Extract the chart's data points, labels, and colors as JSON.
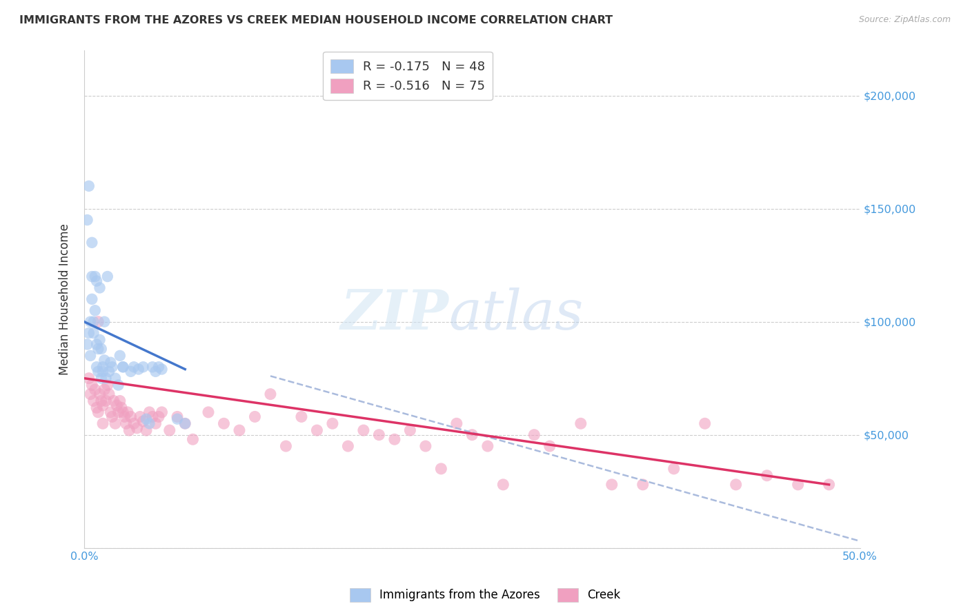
{
  "title": "IMMIGRANTS FROM THE AZORES VS CREEK MEDIAN HOUSEHOLD INCOME CORRELATION CHART",
  "source": "Source: ZipAtlas.com",
  "ylabel": "Median Household Income",
  "xlim": [
    0.0,
    0.5
  ],
  "ylim": [
    0,
    220000
  ],
  "blue_R": -0.175,
  "blue_N": 48,
  "pink_R": -0.516,
  "pink_N": 75,
  "blue_color": "#A8C8F0",
  "pink_color": "#F0A0C0",
  "blue_line_color": "#4477CC",
  "pink_line_color": "#DD3366",
  "dashed_line_color": "#AABBDD",
  "legend_label_blue": "Immigrants from the Azores",
  "legend_label_pink": "Creek",
  "blue_x": [
    0.002,
    0.002,
    0.003,
    0.003,
    0.004,
    0.004,
    0.005,
    0.005,
    0.005,
    0.006,
    0.006,
    0.007,
    0.007,
    0.008,
    0.008,
    0.008,
    0.009,
    0.009,
    0.01,
    0.01,
    0.011,
    0.011,
    0.012,
    0.012,
    0.013,
    0.013,
    0.014,
    0.015,
    0.016,
    0.017,
    0.018,
    0.02,
    0.022,
    0.023,
    0.025,
    0.025,
    0.03,
    0.032,
    0.035,
    0.038,
    0.04,
    0.042,
    0.044,
    0.046,
    0.048,
    0.05,
    0.06,
    0.065
  ],
  "blue_y": [
    90000,
    145000,
    95000,
    160000,
    100000,
    85000,
    135000,
    120000,
    110000,
    100000,
    95000,
    105000,
    120000,
    118000,
    90000,
    80000,
    88000,
    78000,
    92000,
    115000,
    88000,
    75000,
    80000,
    78000,
    83000,
    100000,
    75000,
    120000,
    78000,
    82000,
    80000,
    75000,
    72000,
    85000,
    80000,
    80000,
    78000,
    80000,
    79000,
    80000,
    57000,
    55000,
    80000,
    78000,
    80000,
    79000,
    57000,
    55000
  ],
  "pink_x": [
    0.003,
    0.004,
    0.005,
    0.006,
    0.007,
    0.008,
    0.009,
    0.009,
    0.01,
    0.011,
    0.012,
    0.012,
    0.013,
    0.014,
    0.015,
    0.016,
    0.017,
    0.018,
    0.019,
    0.02,
    0.021,
    0.022,
    0.023,
    0.024,
    0.025,
    0.026,
    0.027,
    0.028,
    0.029,
    0.03,
    0.032,
    0.034,
    0.036,
    0.038,
    0.04,
    0.042,
    0.044,
    0.046,
    0.048,
    0.05,
    0.055,
    0.06,
    0.065,
    0.07,
    0.08,
    0.09,
    0.1,
    0.11,
    0.12,
    0.13,
    0.14,
    0.15,
    0.16,
    0.17,
    0.18,
    0.19,
    0.2,
    0.21,
    0.22,
    0.23,
    0.24,
    0.25,
    0.26,
    0.27,
    0.29,
    0.3,
    0.32,
    0.34,
    0.36,
    0.38,
    0.4,
    0.42,
    0.44,
    0.46,
    0.48
  ],
  "pink_y": [
    75000,
    68000,
    72000,
    65000,
    70000,
    62000,
    60000,
    100000,
    68000,
    65000,
    63000,
    55000,
    70000,
    65000,
    72000,
    68000,
    60000,
    58000,
    65000,
    55000,
    63000,
    60000,
    65000,
    62000,
    60000,
    58000,
    55000,
    60000,
    52000,
    58000,
    55000,
    53000,
    58000,
    56000,
    52000,
    60000,
    58000,
    55000,
    58000,
    60000,
    52000,
    58000,
    55000,
    48000,
    60000,
    55000,
    52000,
    58000,
    68000,
    45000,
    58000,
    52000,
    55000,
    45000,
    52000,
    50000,
    48000,
    52000,
    45000,
    35000,
    55000,
    50000,
    45000,
    28000,
    50000,
    45000,
    55000,
    28000,
    28000,
    35000,
    55000,
    28000,
    32000,
    28000,
    28000
  ],
  "blue_line_x": [
    0.0,
    0.065
  ],
  "blue_line_y": [
    100000,
    79000
  ],
  "pink_line_x": [
    0.0,
    0.48
  ],
  "pink_line_y": [
    75000,
    28000
  ],
  "dash_line_x": [
    0.12,
    0.5
  ],
  "dash_line_y": [
    76000,
    3000
  ]
}
